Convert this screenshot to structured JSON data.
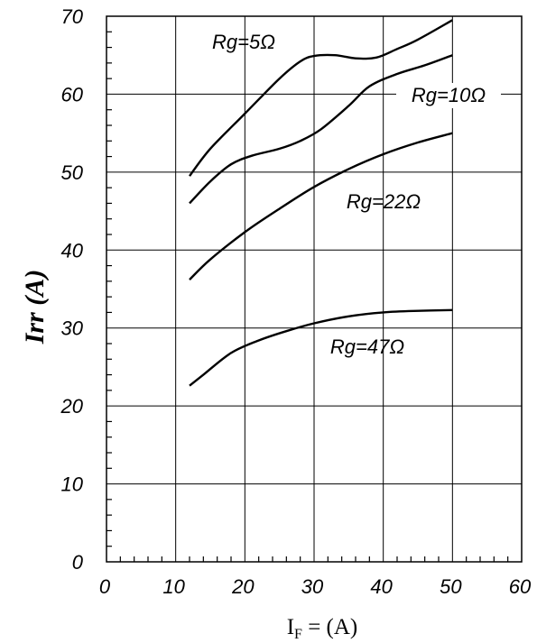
{
  "chart_data": {
    "type": "line",
    "xlabel": {
      "main": "I",
      "sub": "F",
      "rest": " = (A)"
    },
    "ylabel": "Irr (A)",
    "xlim": [
      0,
      60
    ],
    "ylim": [
      0,
      70
    ],
    "xticks": [
      "0",
      "10",
      "20",
      "30",
      "40",
      "50",
      "60"
    ],
    "yticks": [
      "0",
      "10",
      "20",
      "30",
      "40",
      "50",
      "60",
      "70"
    ],
    "grid": true,
    "series": [
      {
        "name": "Rg=5Ω",
        "x": [
          12,
          15,
          20,
          25,
          28,
          30,
          33,
          36,
          39,
          42,
          45,
          50
        ],
        "y": [
          49.5,
          53,
          57.5,
          62,
          64.2,
          64.9,
          65.0,
          64.6,
          64.7,
          65.8,
          67,
          69.5
        ]
      },
      {
        "name": "Rg=10Ω",
        "x": [
          12,
          15,
          18,
          21,
          25,
          28,
          31,
          35,
          38,
          42,
          46,
          50
        ],
        "y": [
          46,
          48.8,
          51,
          52.1,
          53,
          54,
          55.5,
          58.5,
          61,
          62.6,
          63.7,
          65
        ]
      },
      {
        "name": "Rg=22Ω",
        "x": [
          12,
          15,
          20,
          25,
          30,
          35,
          40,
          45,
          50
        ],
        "y": [
          36.2,
          38.8,
          42.3,
          45.3,
          48.1,
          50.4,
          52.3,
          53.8,
          55
        ]
      },
      {
        "name": "Rg=47Ω",
        "x": [
          12,
          14,
          18,
          22,
          26,
          30,
          35,
          40,
          45,
          50
        ],
        "y": [
          22.6,
          24,
          26.8,
          28.4,
          29.6,
          30.6,
          31.5,
          32.0,
          32.2,
          32.3
        ]
      }
    ],
    "label_positions": [
      "above-middle",
      "right-end",
      "right",
      "below-right"
    ]
  }
}
